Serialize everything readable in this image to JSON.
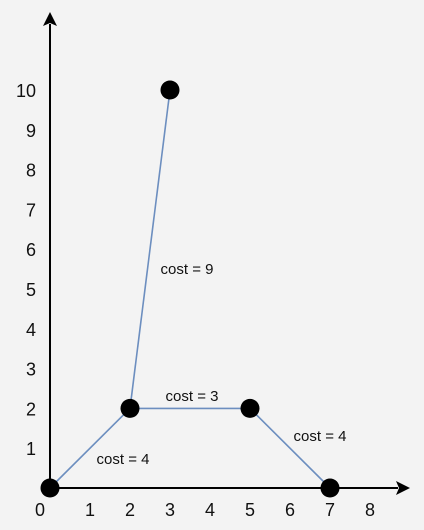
{
  "colors": {
    "background": "#f3f3f3",
    "axis": "#000000",
    "edge": "#6c8ebf",
    "node": "#000000",
    "text": "#111111"
  },
  "axes": {
    "x_ticks": [
      "0",
      "1",
      "2",
      "3",
      "4",
      "5",
      "6",
      "7",
      "8"
    ],
    "y_ticks": [
      "1",
      "2",
      "3",
      "4",
      "5",
      "6",
      "7",
      "8",
      "9",
      "10"
    ]
  },
  "graph": {
    "nodes": [
      {
        "id": "A",
        "x": 0,
        "y": 0
      },
      {
        "id": "B",
        "x": 2,
        "y": 2
      },
      {
        "id": "C",
        "x": 3,
        "y": 10
      },
      {
        "id": "D",
        "x": 5,
        "y": 2
      },
      {
        "id": "E",
        "x": 7,
        "y": 0
      }
    ],
    "edges": [
      {
        "from": "A",
        "to": "B",
        "label": "cost = 4"
      },
      {
        "from": "B",
        "to": "C",
        "label": "cost = 9"
      },
      {
        "from": "B",
        "to": "D",
        "label": "cost = 3"
      },
      {
        "from": "D",
        "to": "E",
        "label": "cost = 4"
      }
    ]
  }
}
